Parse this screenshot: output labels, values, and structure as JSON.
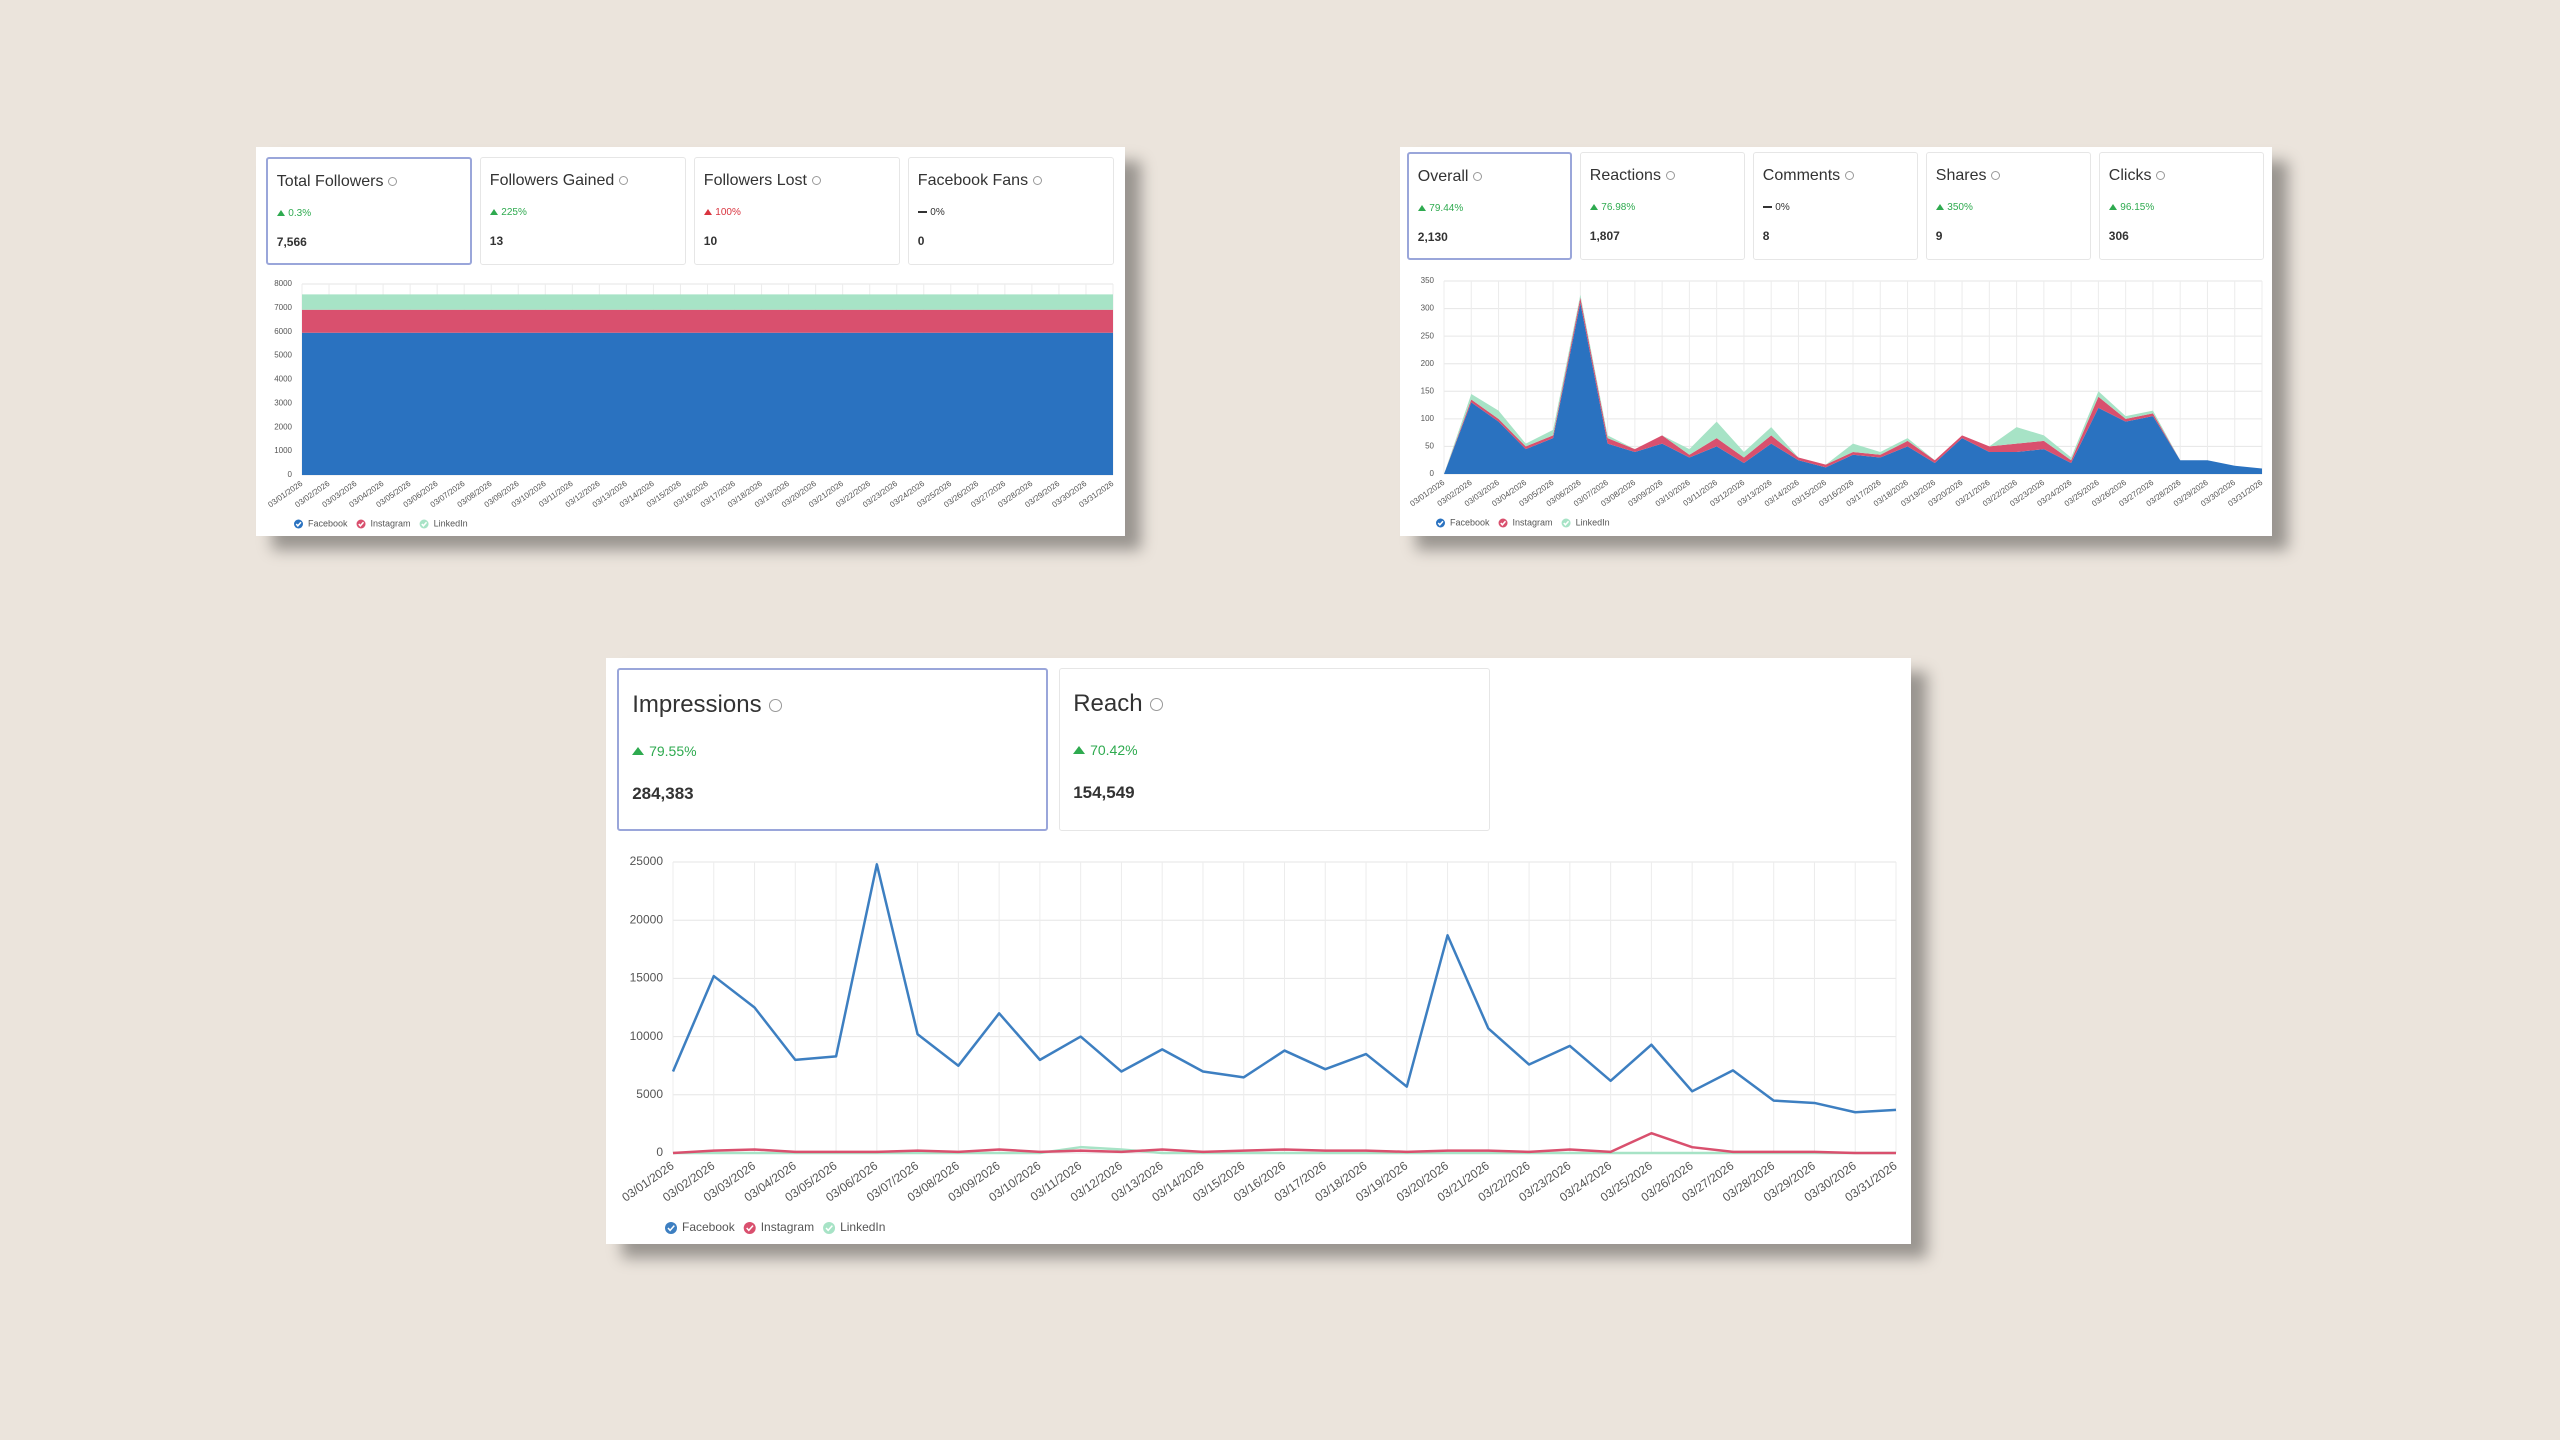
{
  "panels": [
    {
      "cards": [
        {
          "title": "Total Followers",
          "change": "0.3%",
          "trend": "up",
          "color": "#2eaa4f",
          "value": "7,566"
        },
        {
          "title": "Followers Gained",
          "change": "225%",
          "trend": "up",
          "color": "#2eaa4f",
          "value": "13"
        },
        {
          "title": "Followers Lost",
          "change": "100%",
          "trend": "up",
          "color": "#d9343f",
          "value": "10"
        },
        {
          "title": "Facebook Fans",
          "change": "0%",
          "trend": "flat",
          "color": "#333333",
          "value": "0"
        }
      ]
    },
    {
      "cards": [
        {
          "title": "Overall",
          "change": "79.44%",
          "trend": "up",
          "color": "#2eaa4f",
          "value": "2,130"
        },
        {
          "title": "Reactions",
          "change": "76.98%",
          "trend": "up",
          "color": "#2eaa4f",
          "value": "1,807"
        },
        {
          "title": "Comments",
          "change": "0%",
          "trend": "flat",
          "color": "#333333",
          "value": "8"
        },
        {
          "title": "Shares",
          "change": "350%",
          "trend": "up",
          "color": "#2eaa4f",
          "value": "9"
        },
        {
          "title": "Clicks",
          "change": "96.15%",
          "trend": "up",
          "color": "#2eaa4f",
          "value": "306"
        }
      ]
    },
    {
      "cards": [
        {
          "title": "Impressions",
          "change": "79.55%",
          "trend": "up",
          "color": "#2eaa4f",
          "value": "284,383"
        },
        {
          "title": "Reach",
          "change": "70.42%",
          "trend": "up",
          "color": "#2eaa4f",
          "value": "154,549"
        }
      ]
    }
  ],
  "chart_data": [
    {
      "type": "stacked-area",
      "grid": true,
      "legend": "bottom-left",
      "categories": [
        "03/01/2026",
        "03/02/2026",
        "03/03/2026",
        "03/04/2026",
        "03/05/2026",
        "03/06/2026",
        "03/07/2026",
        "03/08/2026",
        "03/09/2026",
        "03/10/2026",
        "03/11/2026",
        "03/12/2026",
        "03/13/2026",
        "03/14/2026",
        "03/15/2026",
        "03/16/2026",
        "03/17/2026",
        "03/18/2026",
        "03/19/2026",
        "03/20/2026",
        "03/21/2026",
        "03/22/2026",
        "03/23/2026",
        "03/24/2026",
        "03/25/2026",
        "03/26/2026",
        "03/27/2026",
        "03/28/2026",
        "03/29/2026",
        "03/30/2026",
        "03/31/2026"
      ],
      "ylim": [
        0,
        8000
      ],
      "yticks": [
        0,
        1000,
        2000,
        3000,
        4000,
        5000,
        6000,
        7000,
        8000
      ],
      "series": [
        {
          "name": "Facebook",
          "color": "#2a72c0",
          "values": [
            5960,
            5960,
            5960,
            5960,
            5960,
            5960,
            5960,
            5960,
            5960,
            5960,
            5960,
            5960,
            5960,
            5960,
            5960,
            5960,
            5960,
            5960,
            5960,
            5960,
            5960,
            5960,
            5960,
            5960,
            5960,
            5960,
            5960,
            5960,
            5960,
            5960,
            5960
          ]
        },
        {
          "name": "Instagram",
          "color": "#d9506e",
          "values": [
            960,
            960,
            960,
            960,
            960,
            960,
            960,
            960,
            960,
            960,
            960,
            960,
            960,
            960,
            960,
            960,
            960,
            960,
            960,
            960,
            960,
            960,
            960,
            960,
            960,
            960,
            960,
            960,
            960,
            960,
            960
          ]
        },
        {
          "name": "LinkedIn",
          "color": "#a7e3c6",
          "values": [
            646,
            646,
            646,
            646,
            646,
            646,
            646,
            646,
            646,
            646,
            646,
            646,
            646,
            646,
            646,
            646,
            646,
            646,
            646,
            646,
            646,
            646,
            646,
            646,
            646,
            646,
            646,
            646,
            646,
            646,
            646
          ]
        }
      ]
    },
    {
      "type": "stacked-area",
      "grid": true,
      "legend": "bottom-left",
      "categories": [
        "03/01/2026",
        "03/02/2026",
        "03/03/2026",
        "03/04/2026",
        "03/05/2026",
        "03/06/2026",
        "03/07/2026",
        "03/08/2026",
        "03/09/2026",
        "03/10/2026",
        "03/11/2026",
        "03/12/2026",
        "03/13/2026",
        "03/14/2026",
        "03/15/2026",
        "03/16/2026",
        "03/17/2026",
        "03/18/2026",
        "03/19/2026",
        "03/20/2026",
        "03/21/2026",
        "03/22/2026",
        "03/23/2026",
        "03/24/2026",
        "03/25/2026",
        "03/26/2026",
        "03/27/2026",
        "03/28/2026",
        "03/29/2026",
        "03/30/2026",
        "03/31/2026"
      ],
      "ylim": [
        0,
        350
      ],
      "yticks": [
        0,
        50,
        100,
        150,
        200,
        250,
        300,
        350
      ],
      "series": [
        {
          "name": "Facebook",
          "color": "#2a72c0",
          "values": [
            0,
            130,
            95,
            45,
            65,
            310,
            55,
            40,
            55,
            30,
            50,
            20,
            55,
            25,
            12,
            35,
            30,
            50,
            20,
            65,
            40,
            40,
            45,
            20,
            120,
            95,
            105,
            25,
            25,
            15,
            10
          ]
        },
        {
          "name": "Instagram",
          "color": "#d9506e",
          "values": [
            0,
            5,
            5,
            5,
            5,
            10,
            10,
            5,
            15,
            5,
            15,
            10,
            15,
            5,
            5,
            5,
            5,
            10,
            5,
            5,
            10,
            15,
            15,
            5,
            20,
            5,
            5,
            0,
            0,
            0,
            0
          ]
        },
        {
          "name": "LinkedIn",
          "color": "#a7e3c6",
          "values": [
            0,
            10,
            15,
            5,
            10,
            5,
            5,
            0,
            0,
            10,
            30,
            10,
            15,
            0,
            0,
            15,
            5,
            5,
            0,
            0,
            0,
            30,
            10,
            5,
            10,
            5,
            5,
            0,
            0,
            0,
            0
          ]
        }
      ]
    },
    {
      "type": "line",
      "grid": true,
      "legend": "bottom-left",
      "categories": [
        "03/01/2026",
        "03/02/2026",
        "03/03/2026",
        "03/04/2026",
        "03/05/2026",
        "03/06/2026",
        "03/07/2026",
        "03/08/2026",
        "03/09/2026",
        "03/10/2026",
        "03/11/2026",
        "03/12/2026",
        "03/13/2026",
        "03/14/2026",
        "03/15/2026",
        "03/16/2026",
        "03/17/2026",
        "03/18/2026",
        "03/19/2026",
        "03/20/2026",
        "03/21/2026",
        "03/22/2026",
        "03/23/2026",
        "03/24/2026",
        "03/25/2026",
        "03/26/2026",
        "03/27/2026",
        "03/28/2026",
        "03/29/2026",
        "03/30/2026",
        "03/31/2026"
      ],
      "ylim": [
        0,
        25000
      ],
      "yticks": [
        0,
        5000,
        10000,
        15000,
        20000,
        25000
      ],
      "series": [
        {
          "name": "Facebook",
          "color": "#3d7fc1",
          "values": [
            7000,
            15200,
            12500,
            8000,
            8300,
            24800,
            10200,
            7500,
            12000,
            8000,
            10000,
            7000,
            8900,
            7000,
            6500,
            8800,
            7200,
            8500,
            5700,
            18700,
            10700,
            7600,
            9200,
            6200,
            9300,
            5300,
            7100,
            4500,
            4300,
            3500,
            3700
          ]
        },
        {
          "name": "Instagram",
          "color": "#d9506e",
          "values": [
            0,
            200,
            300,
            100,
            100,
            100,
            200,
            100,
            300,
            100,
            200,
            100,
            300,
            100,
            200,
            300,
            200,
            200,
            100,
            200,
            200,
            100,
            300,
            100,
            1700,
            500,
            100,
            100,
            100,
            0,
            0
          ]
        },
        {
          "name": "LinkedIn",
          "color": "#a7e3c6",
          "values": [
            0,
            0,
            0,
            0,
            0,
            0,
            0,
            0,
            0,
            0,
            500,
            300,
            0,
            0,
            0,
            0,
            0,
            0,
            0,
            0,
            0,
            0,
            0,
            0,
            0,
            0,
            0,
            0,
            0,
            0,
            0
          ]
        }
      ]
    }
  ]
}
